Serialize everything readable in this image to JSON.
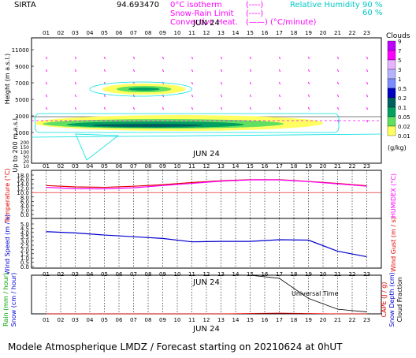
{
  "header": {
    "site": "SIRTA",
    "coord": "94.693470",
    "legend_left": [
      {
        "label": "0°C isotherm",
        "sym": "(----)",
        "color": "#ff00ff"
      },
      {
        "label": "Snow-Rain Limit",
        "sym": "(----)",
        "color": "#ff00ff"
      },
      {
        "label": "Convective Heat.",
        "sym": "(——) (°C/minute)",
        "color": "#ff00ff"
      }
    ],
    "legend_right": [
      {
        "label": "Relative Humidity",
        "val": "90 %",
        "color": "#00c8c8"
      },
      {
        "label": "",
        "val": "60 %",
        "color": "#00c8c8"
      }
    ]
  },
  "colors": {
    "temp": "#e00000",
    "humidex": "#ff00ff",
    "wind": "#0000d0",
    "gust": "#ff0000",
    "cloud_frac": "#000000",
    "rh": "#00e0e0"
  },
  "hours": [
    "01",
    "02",
    "03",
    "04",
    "05",
    "06",
    "07",
    "08",
    "09",
    "10",
    "11",
    "12",
    "13",
    "14",
    "15",
    "16",
    "17",
    "18",
    "19",
    "20",
    "21",
    "22",
    "23"
  ],
  "date": "JUN 24",
  "cloud_scale": {
    "title": "Clouds",
    "unit": "(g/kg)",
    "ticks": [
      "9",
      "7",
      "5",
      "3",
      "1",
      "0.5",
      "0.2",
      "0.1",
      "0.05",
      "0.02",
      "0.01"
    ],
    "colors": [
      "#c000ff",
      "#ff00ff",
      "#e6b3ff",
      "#b3b3ff",
      "#7a8cff",
      "#0000c0",
      "#006060",
      "#00a060",
      "#60e060",
      "#ffff60"
    ]
  },
  "chart_data": [
    {
      "type": "heatmap",
      "panel": "clouds",
      "ylabel": "Height  (m a.s.l.)",
      "ylabel2": "Up to 200 m a.s.l.",
      "yticks_upper": [
        "11000",
        "9000",
        "7000",
        "5000",
        "3000",
        "1000"
      ],
      "yticks_lower": [
        "200",
        "150",
        "100",
        "50",
        "20",
        "10"
      ],
      "upper_ylim": [
        0,
        11500
      ],
      "layers": [
        {
          "name": "high cloud",
          "x_start": 4,
          "x_end": 11,
          "height_m": 6200
        },
        {
          "name": "low cloud",
          "x_start": 1,
          "x_end": 20,
          "height_m": 1400
        }
      ]
    },
    {
      "type": "line",
      "panel": "temperature",
      "ylabel": "Temperature (°C)",
      "ylabel2": "HUMIDEX (°C)",
      "yticks": [
        "18.0",
        "16.0",
        "14.0",
        "12.0",
        "10.0",
        "8.0",
        "6.0",
        "4.0",
        "2.0",
        "0.0"
      ],
      "ylim": [
        0,
        18
      ],
      "x": [
        1,
        3,
        5,
        7,
        9,
        11,
        13,
        15,
        17,
        19,
        21,
        23
      ],
      "series": [
        {
          "name": "temperature",
          "values": [
            13.2,
            12.6,
            12.4,
            12.9,
            13.6,
            14.6,
            15.4,
            15.9,
            15.9,
            15.1,
            14.2,
            13.1
          ]
        },
        {
          "name": "humidex",
          "values": [
            12.4,
            11.8,
            11.7,
            12.2,
            13.2,
            14.2,
            15.2,
            15.8,
            15.8,
            15.0,
            14.0,
            12.9
          ]
        }
      ]
    },
    {
      "type": "line",
      "panel": "wind",
      "ylabel": "Wind Speed (m / s)",
      "ylabel2": "Wind Gust (m / s)",
      "yticks": [
        "5.0",
        "4.5",
        "4.0",
        "3.5",
        "3.0",
        "2.5",
        "2.0",
        "1.5",
        "1.0",
        "0.5",
        "0.0"
      ],
      "ylim": [
        0,
        5
      ],
      "x": [
        1,
        3,
        5,
        7,
        9,
        11,
        13,
        15,
        17,
        19,
        21,
        23
      ],
      "series": [
        {
          "name": "wind speed",
          "values": [
            4.1,
            3.95,
            3.7,
            3.5,
            3.3,
            2.9,
            2.95,
            2.95,
            3.15,
            3.1,
            1.8,
            1.15
          ]
        }
      ]
    },
    {
      "type": "line",
      "panel": "precip",
      "ylabel": "Rain (mm / hour)",
      "ylabel_b": "Snow (cm / hour)",
      "ylabel2": "CAPE (J / g)",
      "ylabel2_b": "Snow Depth (cm)",
      "ylabel2_c": "Cloud Fraction",
      "x": [
        1,
        3,
        5,
        7,
        9,
        11,
        13,
        15,
        17,
        19,
        21,
        23
      ],
      "series": [
        {
          "name": "cloud fraction",
          "values": [
            1.0,
            1.0,
            1.0,
            1.0,
            1.0,
            1.0,
            1.0,
            1.0,
            0.92,
            0.4,
            0.12,
            0.05
          ]
        },
        {
          "name": "cape",
          "values": [
            0,
            0,
            0,
            0,
            0,
            0,
            0,
            0.01,
            0.02,
            0.01,
            0,
            0
          ]
        }
      ]
    }
  ],
  "xlabel": "Universal Time",
  "footer": "Modele Atmospherique LMDZ / Forecast starting on 20210624 at 0hUT"
}
